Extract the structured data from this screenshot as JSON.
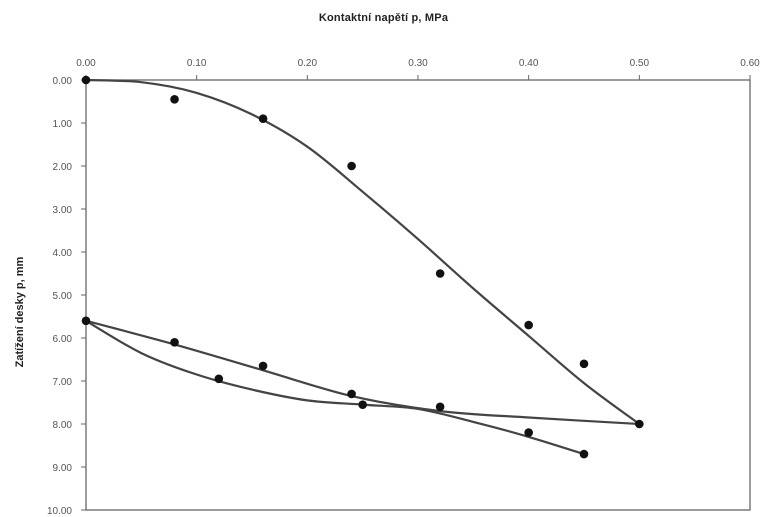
{
  "chart_data": {
    "type": "scatter",
    "title": "Kontaktní napětí p, MPa",
    "xlabel": "Kontaktní napětí p, MPa",
    "ylabel": "Zatížení desky p, mm",
    "x_axis_position": "top",
    "y_axis_inverted": true,
    "xlim": [
      0,
      0.6
    ],
    "ylim": [
      0,
      10
    ],
    "x_ticks": [
      "0.00",
      "0.10",
      "0.20",
      "0.30",
      "0.40",
      "0.50",
      "0.60"
    ],
    "y_ticks": [
      "0.00",
      "1.00",
      "2.00",
      "3.00",
      "4.00",
      "5.00",
      "6.00",
      "7.00",
      "8.00",
      "9.00",
      "10.00"
    ],
    "grid": false,
    "legend": "none",
    "series": [
      {
        "kind": "points",
        "x": [
          0.0,
          0.08,
          0.16,
          0.24,
          0.32,
          0.4,
          0.45,
          0.5,
          0.45,
          0.4,
          0.32,
          0.25,
          0.24,
          0.16,
          0.12,
          0.08,
          0.0
        ],
        "y": [
          0.0,
          0.45,
          0.9,
          2.0,
          4.5,
          5.7,
          6.6,
          8.0,
          8.7,
          8.2,
          7.6,
          7.55,
          7.3,
          6.65,
          6.95,
          6.1,
          5.6
        ]
      },
      {
        "kind": "fit-loading",
        "x": [
          0.0,
          0.05,
          0.1,
          0.15,
          0.2,
          0.25,
          0.3,
          0.35,
          0.4,
          0.45,
          0.5
        ],
        "y": [
          0.0,
          0.05,
          0.3,
          0.8,
          1.55,
          2.6,
          3.7,
          4.85,
          5.95,
          7.05,
          8.0
        ]
      },
      {
        "kind": "fit-unloading",
        "x": [
          0.5,
          0.4,
          0.32,
          0.24,
          0.16,
          0.08,
          0.0
        ],
        "y": [
          8.0,
          7.85,
          7.7,
          7.35,
          6.75,
          6.15,
          5.6
        ]
      },
      {
        "kind": "fit-reloading",
        "x": [
          0.0,
          0.05,
          0.1,
          0.15,
          0.2,
          0.25,
          0.3,
          0.35,
          0.4,
          0.45
        ],
        "y": [
          5.6,
          6.35,
          6.85,
          7.2,
          7.45,
          7.55,
          7.65,
          7.95,
          8.3,
          8.7
        ]
      }
    ],
    "colors": {
      "curve": "#444444",
      "point": "#111111",
      "axis": "#666666"
    }
  }
}
